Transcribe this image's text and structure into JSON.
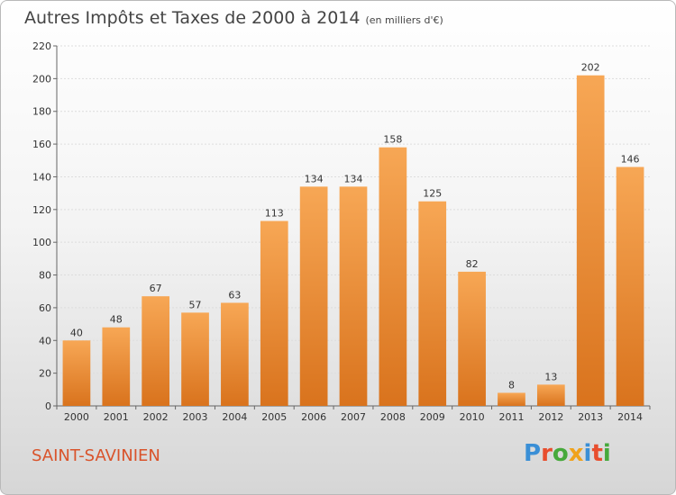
{
  "header": {
    "title": "Autres Impôts et Taxes de 2000 à 2014",
    "unit": "(en milliers d'€)"
  },
  "footer": {
    "commune": "SAINT-SAVINIEN",
    "brand": "Proxiti"
  },
  "colors": {
    "bar_light": "#f7a755",
    "bar_dark": "#d9731d",
    "commune_text": "#d9532b",
    "logo_letters": [
      "#3a8fd6",
      "#e84e2e",
      "#47a93c",
      "#f0a21c",
      "#3a8fd6",
      "#e84e2e",
      "#47a93c"
    ]
  },
  "chart_data": {
    "type": "bar",
    "title": "Autres Impôts et Taxes de 2000 à 2014",
    "subtitle": "(en milliers d'€)",
    "categories": [
      "2000",
      "2001",
      "2002",
      "2003",
      "2004",
      "2005",
      "2006",
      "2007",
      "2008",
      "2009",
      "2010",
      "2011",
      "2012",
      "2013",
      "2014"
    ],
    "values": [
      40,
      48,
      67,
      57,
      63,
      113,
      134,
      134,
      158,
      125,
      82,
      8,
      13,
      202,
      146
    ],
    "data_labels": [
      "40",
      "48",
      "67",
      "57",
      "63",
      "113",
      "134",
      "134",
      "158",
      "125",
      "82",
      "8",
      "13",
      "202",
      "146"
    ],
    "yticks": [
      0,
      20,
      40,
      60,
      80,
      100,
      120,
      140,
      160,
      180,
      200,
      220
    ],
    "ytick_labels": [
      "0",
      "20",
      "40",
      "60",
      "80",
      "100",
      "120",
      "140",
      "160",
      "180",
      "200",
      "220"
    ],
    "ylim": [
      0,
      220
    ],
    "grid": true
  }
}
